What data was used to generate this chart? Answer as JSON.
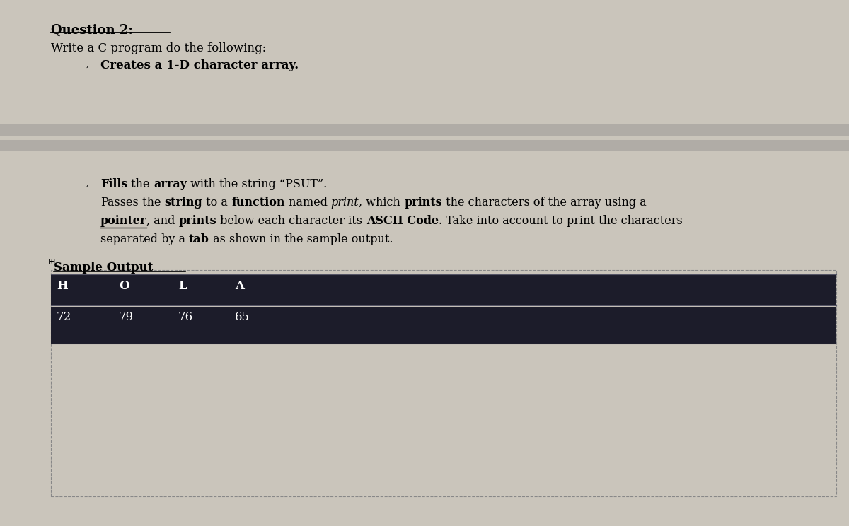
{
  "background_color": "#cac5bb",
  "title_line": "Question 2:",
  "subtitle_line": "Write a C program do the following:",
  "bullet1_text": "Creates a 1-D character array.",
  "bullet2_line": "Fills the array with the string “PSUT”.",
  "bullet3_line1": "Passes the string to a function named print, which prints the characters of the array using a",
  "bullet3_line2": "pointer, and prints below each character its ASCII Code. Take into account to print the characters",
  "bullet3_line3": "separated by a tab as shown in the sample output.",
  "sample_output_label": "Sample Output",
  "table_bg_color": "#1c1c2a",
  "row1": [
    "H",
    "O",
    "L",
    "A"
  ],
  "row2": [
    "72",
    "79",
    "76",
    "65"
  ],
  "table_text_color": "#ffffff",
  "band_color": "#b0aca6",
  "border_color": "#888888"
}
